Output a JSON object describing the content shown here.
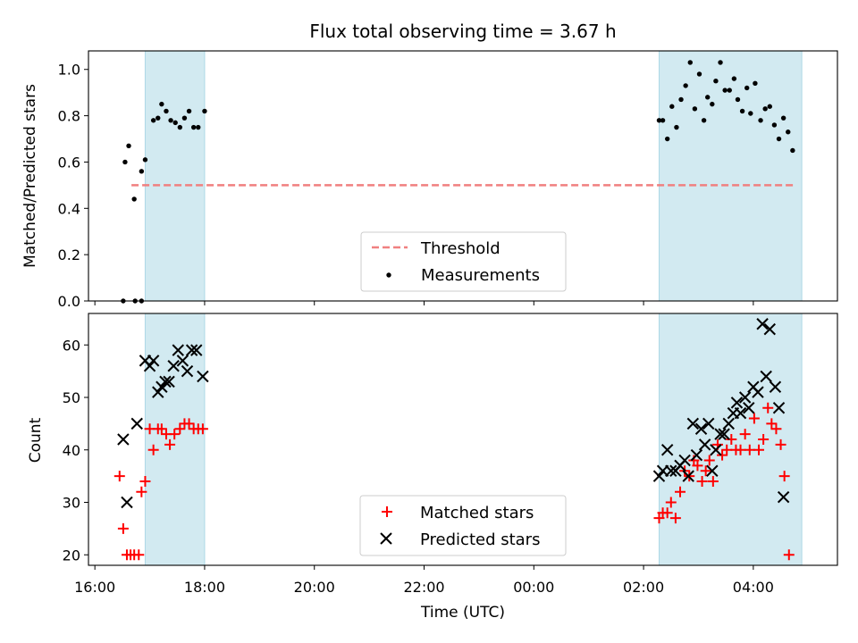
{
  "chart_data": [
    {
      "type": "scatter",
      "title": "Flux total observing time = 3.67 h",
      "xlabel": "",
      "ylabel": "Matched/Predicted stars",
      "ylim": [
        0,
        1.08
      ],
      "yticks": [
        "0.0",
        "0.2",
        "0.4",
        "0.6",
        "0.8",
        "1.0"
      ],
      "yticks_values": [
        0,
        0.2,
        0.4,
        0.6,
        0.8,
        1.0
      ],
      "threshold": {
        "label": "Threshold",
        "value": 0.5,
        "color": "#f08080",
        "x_range": [
          "16:40",
          "04:45"
        ]
      },
      "shaded_intervals": [
        [
          "16:55",
          "18:00"
        ],
        [
          "02:17",
          "04:53"
        ]
      ],
      "shade_color": "#add8e6",
      "legend": {
        "placement": "bottom-center",
        "entries": [
          "Threshold",
          "Measurements"
        ]
      },
      "series": [
        {
          "name": "Measurements",
          "marker": "dot",
          "color": "#000000",
          "points": [
            [
              "16:31",
              0.0
            ],
            [
              "16:44",
              0.0
            ],
            [
              "16:51",
              0.0
            ],
            [
              "16:33",
              0.6
            ],
            [
              "16:37",
              0.67
            ],
            [
              "16:43",
              0.44
            ],
            [
              "16:51",
              0.56
            ],
            [
              "16:55",
              0.61
            ],
            [
              "17:04",
              0.78
            ],
            [
              "17:09",
              0.79
            ],
            [
              "17:13",
              0.85
            ],
            [
              "17:18",
              0.82
            ],
            [
              "17:23",
              0.78
            ],
            [
              "17:28",
              0.77
            ],
            [
              "17:33",
              0.75
            ],
            [
              "17:38",
              0.79
            ],
            [
              "17:43",
              0.82
            ],
            [
              "17:48",
              0.75
            ],
            [
              "17:53",
              0.75
            ],
            [
              "18:00",
              0.82
            ],
            [
              "02:17",
              0.78
            ],
            [
              "02:21",
              0.78
            ],
            [
              "02:26",
              0.7
            ],
            [
              "02:31",
              0.84
            ],
            [
              "02:36",
              0.75
            ],
            [
              "02:41",
              0.87
            ],
            [
              "02:46",
              0.93
            ],
            [
              "02:51",
              1.03
            ],
            [
              "02:56",
              0.83
            ],
            [
              "03:01",
              0.98
            ],
            [
              "03:06",
              0.78
            ],
            [
              "03:10",
              0.88
            ],
            [
              "03:15",
              0.85
            ],
            [
              "03:19",
              0.95
            ],
            [
              "03:24",
              1.03
            ],
            [
              "03:29",
              0.91
            ],
            [
              "03:34",
              0.91
            ],
            [
              "03:39",
              0.96
            ],
            [
              "03:43",
              0.87
            ],
            [
              "03:48",
              0.82
            ],
            [
              "03:53",
              0.92
            ],
            [
              "03:57",
              0.81
            ],
            [
              "04:02",
              0.94
            ],
            [
              "04:08",
              0.78
            ],
            [
              "04:13",
              0.83
            ],
            [
              "04:18",
              0.84
            ],
            [
              "04:23",
              0.76
            ],
            [
              "04:28",
              0.7
            ],
            [
              "04:33",
              0.79
            ],
            [
              "04:38",
              0.73
            ],
            [
              "04:43",
              0.65
            ]
          ]
        }
      ]
    },
    {
      "type": "scatter",
      "title": "",
      "xlabel": "Time (UTC)",
      "ylabel": "Count",
      "ylim": [
        18,
        66
      ],
      "yticks": [
        "20",
        "30",
        "40",
        "50",
        "60"
      ],
      "yticks_values": [
        20,
        30,
        40,
        50,
        60
      ],
      "xlim": [
        "15:53",
        "05:32"
      ],
      "xticks": [
        "16:00",
        "18:00",
        "20:00",
        "22:00",
        "00:00",
        "02:00",
        "04:00"
      ],
      "xticks_values": [
        "16:00",
        "18:00",
        "20:00",
        "22:00",
        "00:00",
        "02:00",
        "04:00"
      ],
      "shaded_intervals": [
        [
          "16:55",
          "18:00"
        ],
        [
          "02:17",
          "04:53"
        ]
      ],
      "shade_color": "#add8e6",
      "legend": {
        "placement": "bottom-center",
        "entries": [
          "Matched stars",
          "Predicted stars"
        ]
      },
      "series": [
        {
          "name": "Matched stars",
          "marker": "plus",
          "color": "#ff0000",
          "points": [
            [
              "16:27",
              35
            ],
            [
              "16:31",
              25
            ],
            [
              "16:35",
              20
            ],
            [
              "16:39",
              20
            ],
            [
              "16:43",
              20
            ],
            [
              "16:48",
              20
            ],
            [
              "16:51",
              32
            ],
            [
              "16:55",
              34
            ],
            [
              "17:00",
              44
            ],
            [
              "17:04",
              40
            ],
            [
              "17:09",
              44
            ],
            [
              "17:13",
              44
            ],
            [
              "17:18",
              43
            ],
            [
              "17:22",
              41
            ],
            [
              "17:27",
              43
            ],
            [
              "17:33",
              44
            ],
            [
              "17:38",
              45
            ],
            [
              "17:43",
              45
            ],
            [
              "17:48",
              44
            ],
            [
              "17:53",
              44
            ],
            [
              "17:58",
              44
            ],
            [
              "02:17",
              27
            ],
            [
              "02:21",
              28
            ],
            [
              "02:26",
              28
            ],
            [
              "02:30",
              30
            ],
            [
              "02:35",
              27
            ],
            [
              "02:40",
              32
            ],
            [
              "02:45",
              36
            ],
            [
              "02:50",
              35
            ],
            [
              "02:55",
              38
            ],
            [
              "02:59",
              37
            ],
            [
              "03:04",
              34
            ],
            [
              "03:08",
              36
            ],
            [
              "03:12",
              38
            ],
            [
              "03:16",
              34
            ],
            [
              "03:21",
              41
            ],
            [
              "03:26",
              39
            ],
            [
              "03:31",
              40
            ],
            [
              "03:36",
              42
            ],
            [
              "03:41",
              40
            ],
            [
              "03:46",
              40
            ],
            [
              "03:51",
              43
            ],
            [
              "03:56",
              40
            ],
            [
              "04:01",
              46
            ],
            [
              "04:06",
              40
            ],
            [
              "04:11",
              42
            ],
            [
              "04:16",
              48
            ],
            [
              "04:20",
              45
            ],
            [
              "04:25",
              44
            ],
            [
              "04:30",
              41
            ],
            [
              "04:34",
              35
            ],
            [
              "04:39",
              20
            ]
          ]
        },
        {
          "name": "Predicted stars",
          "marker": "x",
          "color": "#000000",
          "points": [
            [
              "16:31",
              42
            ],
            [
              "16:35",
              30
            ],
            [
              "16:46",
              45
            ],
            [
              "16:55",
              57
            ],
            [
              "17:00",
              56
            ],
            [
              "17:04",
              57
            ],
            [
              "17:09",
              51
            ],
            [
              "17:13",
              52
            ],
            [
              "17:17",
              53
            ],
            [
              "17:21",
              53
            ],
            [
              "17:26",
              56
            ],
            [
              "17:31",
              59
            ],
            [
              "17:36",
              57
            ],
            [
              "17:41",
              55
            ],
            [
              "17:46",
              59
            ],
            [
              "17:51",
              59
            ],
            [
              "17:58",
              54
            ],
            [
              "02:17",
              35
            ],
            [
              "02:21",
              36
            ],
            [
              "02:26",
              40
            ],
            [
              "02:30",
              36
            ],
            [
              "02:35",
              36
            ],
            [
              "02:40",
              37
            ],
            [
              "02:45",
              38
            ],
            [
              "02:49",
              35
            ],
            [
              "02:54",
              45
            ],
            [
              "02:58",
              39
            ],
            [
              "03:03",
              44
            ],
            [
              "03:07",
              41
            ],
            [
              "03:11",
              45
            ],
            [
              "03:15",
              36
            ],
            [
              "03:19",
              40
            ],
            [
              "03:24",
              43
            ],
            [
              "03:28",
              43
            ],
            [
              "03:33",
              45
            ],
            [
              "03:38",
              47
            ],
            [
              "03:42",
              49
            ],
            [
              "03:46",
              47
            ],
            [
              "03:51",
              50
            ],
            [
              "03:55",
              48
            ],
            [
              "04:00",
              52
            ],
            [
              "04:05",
              51
            ],
            [
              "04:10",
              64
            ],
            [
              "04:14",
              54
            ],
            [
              "04:18",
              63
            ],
            [
              "04:24",
              52
            ],
            [
              "04:28",
              48
            ],
            [
              "04:33",
              31
            ]
          ]
        }
      ]
    }
  ]
}
